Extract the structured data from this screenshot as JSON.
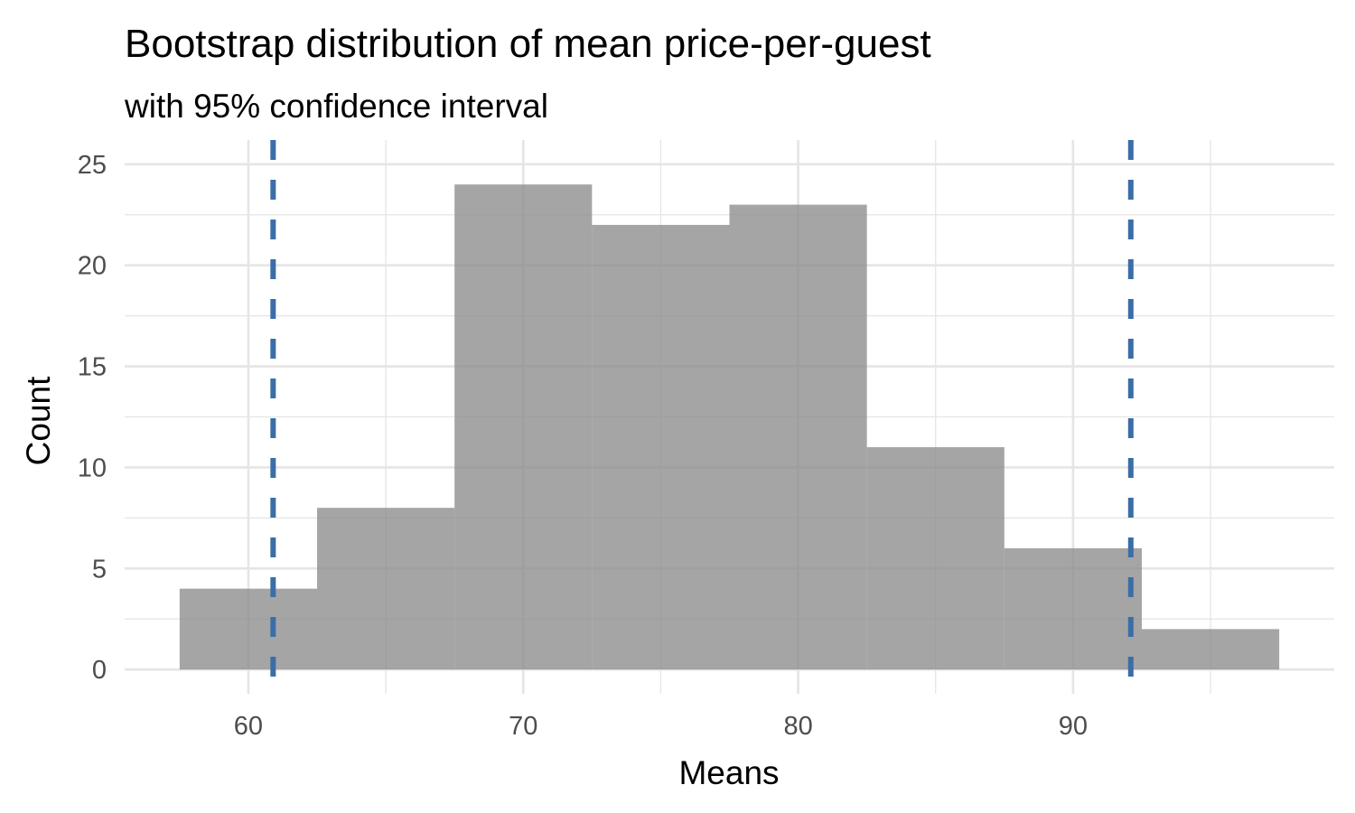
{
  "chart_data": {
    "type": "bar",
    "title": "Bootstrap distribution of mean price-per-guest",
    "subtitle": "with 95% confidence interval",
    "xlabel": "Means",
    "ylabel": "Count",
    "xlim": [
      55.5,
      99.5
    ],
    "ylim": [
      -1.2,
      26.2
    ],
    "xticks": [
      60,
      70,
      80,
      90
    ],
    "xtick_labels": [
      "60",
      "70",
      "80",
      "90"
    ],
    "yticks": [
      0,
      5,
      10,
      15,
      20,
      25
    ],
    "ytick_labels": [
      "0",
      "5",
      "10",
      "15",
      "20",
      "25"
    ],
    "bins": [
      {
        "x0": 57.5,
        "x1": 62.5,
        "count": 4
      },
      {
        "x0": 62.5,
        "x1": 67.5,
        "count": 8
      },
      {
        "x0": 67.5,
        "x1": 72.5,
        "count": 24
      },
      {
        "x0": 72.5,
        "x1": 77.5,
        "count": 22
      },
      {
        "x0": 77.5,
        "x1": 82.5,
        "count": 23
      },
      {
        "x0": 82.5,
        "x1": 87.5,
        "count": 11
      },
      {
        "x0": 87.5,
        "x1": 92.5,
        "count": 6
      },
      {
        "x0": 92.5,
        "x1": 97.5,
        "count": 2
      }
    ],
    "ci_lines": [
      60.9,
      92.1
    ],
    "grid": true,
    "colors": {
      "bar_fill": "#8c8c8c",
      "ci_line": "#3b6ea8",
      "grid": "#e5e5e5"
    }
  }
}
